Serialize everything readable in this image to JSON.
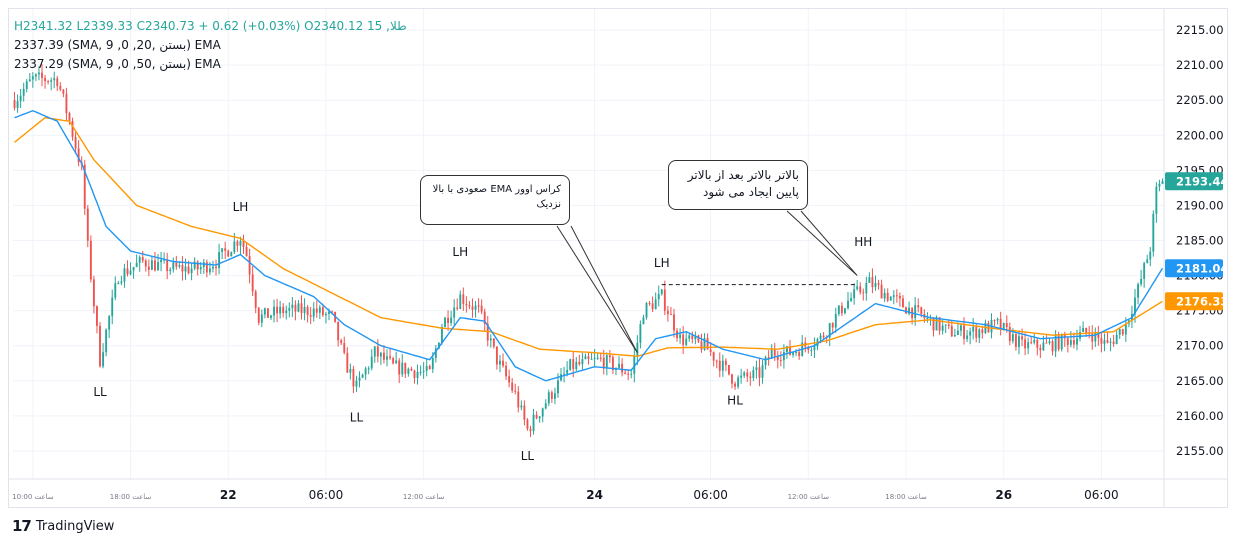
{
  "legend": {
    "ohlc": "H2341.32 L2339.33 C2340.73 + 0.62 (+0.03%) O2340.12 15 ,طلا",
    "ema20": "2337.39 (SMA, 9 ,0 ,بستن ,20) EMA",
    "ema50": "2337.29 (SMA, 9 ,0 ,بستن ,50) EMA"
  },
  "annotations": {
    "callout_1": "کراس اوور EMA صعودی با بالا نزدیک",
    "callout_2": "بالاتر بالاتر بعد از بالاتر پایین ایجاد می شود"
  },
  "footer": {
    "brand": "TradingView",
    "logo": "tradingview-logo-icon"
  },
  "colors": {
    "up": "#26a69a",
    "down": "#ef5350",
    "ema20": "#2196f3",
    "ema50": "#ff9800",
    "grid": "#f0f3fa",
    "axis_text": "#131722"
  },
  "chart_data": {
    "type": "candlestick",
    "ylim": [
      2151,
      2218
    ],
    "price_ticks": [
      "2215.00",
      "2210.00",
      "2205.00",
      "2200.00",
      "2195.00",
      "2190.00",
      "2185.00",
      "2180.00",
      "2175.00",
      "2170.00",
      "2165.00",
      "2160.00",
      "2155.00"
    ],
    "price_labels": [
      {
        "text": "2193.44",
        "value": 2193.44,
        "color": "#26a69a"
      },
      {
        "text": "2181.04",
        "value": 2181.04,
        "color": "#2196f3"
      },
      {
        "text": "2176.33",
        "value": 2176.33,
        "color": "#ff9800"
      }
    ],
    "time_labels": [
      {
        "text": "ساعت 10:00",
        "bar": 6,
        "size": "small"
      },
      {
        "text": "ساعت 18:00",
        "bar": 38,
        "size": "small"
      },
      {
        "text": "22",
        "bar": 70,
        "size": "bold"
      },
      {
        "text": "06:00",
        "bar": 102,
        "size": "normal"
      },
      {
        "text": "ساعت 12:00",
        "bar": 134,
        "size": "small"
      },
      {
        "text": "24",
        "bar": 190,
        "size": "bold"
      },
      {
        "text": "06:00",
        "bar": 228,
        "size": "normal"
      },
      {
        "text": "ساعت 12:00",
        "bar": 260,
        "size": "small"
      },
      {
        "text": "ساعت 18:00",
        "bar": 292,
        "size": "small"
      },
      {
        "text": "26",
        "bar": 324,
        "size": "bold"
      },
      {
        "text": "06:00",
        "bar": 356,
        "size": "normal"
      }
    ],
    "pivot_labels": [
      {
        "text": "LL",
        "bar": 28,
        "value": 2162.8
      },
      {
        "text": "LH",
        "bar": 74,
        "value": 2189.2
      },
      {
        "text": "LL",
        "bar": 112,
        "value": 2159.2
      },
      {
        "text": "LH",
        "bar": 146,
        "value": 2182.8
      },
      {
        "text": "LL",
        "bar": 168,
        "value": 2153.7
      },
      {
        "text": "LH",
        "bar": 212,
        "value": 2181.2
      },
      {
        "text": "HL",
        "bar": 236,
        "value": 2161.6
      },
      {
        "text": "HH",
        "bar": 278,
        "value": 2184.2
      }
    ],
    "key_points": [
      {
        "bar": 0,
        "value": 2205
      },
      {
        "bar": 6,
        "value": 2208
      },
      {
        "bar": 14,
        "value": 2208
      },
      {
        "bar": 18,
        "value": 2202
      },
      {
        "bar": 22,
        "value": 2195
      },
      {
        "bar": 24,
        "value": 2184
      },
      {
        "bar": 28,
        "value": 2168
      },
      {
        "bar": 34,
        "value": 2180
      },
      {
        "bar": 42,
        "value": 2182
      },
      {
        "bar": 52,
        "value": 2181
      },
      {
        "bar": 60,
        "value": 2181
      },
      {
        "bar": 66,
        "value": 2182
      },
      {
        "bar": 74,
        "value": 2185.5
      },
      {
        "bar": 76,
        "value": 2183
      },
      {
        "bar": 80,
        "value": 2174
      },
      {
        "bar": 88,
        "value": 2175
      },
      {
        "bar": 98,
        "value": 2175
      },
      {
        "bar": 104,
        "value": 2174
      },
      {
        "bar": 108,
        "value": 2168
      },
      {
        "bar": 112,
        "value": 2164
      },
      {
        "bar": 118,
        "value": 2169
      },
      {
        "bar": 124,
        "value": 2167
      },
      {
        "bar": 136,
        "value": 2166
      },
      {
        "bar": 140,
        "value": 2173
      },
      {
        "bar": 146,
        "value": 2177
      },
      {
        "bar": 152,
        "value": 2175
      },
      {
        "bar": 158,
        "value": 2168
      },
      {
        "bar": 164,
        "value": 2163
      },
      {
        "bar": 168,
        "value": 2158
      },
      {
        "bar": 174,
        "value": 2162
      },
      {
        "bar": 182,
        "value": 2167
      },
      {
        "bar": 192,
        "value": 2168
      },
      {
        "bar": 202,
        "value": 2166
      },
      {
        "bar": 206,
        "value": 2175
      },
      {
        "bar": 212,
        "value": 2177
      },
      {
        "bar": 218,
        "value": 2171
      },
      {
        "bar": 226,
        "value": 2170
      },
      {
        "bar": 232,
        "value": 2167
      },
      {
        "bar": 236,
        "value": 2165
      },
      {
        "bar": 244,
        "value": 2166
      },
      {
        "bar": 248,
        "value": 2169
      },
      {
        "bar": 254,
        "value": 2169
      },
      {
        "bar": 264,
        "value": 2171
      },
      {
        "bar": 272,
        "value": 2176
      },
      {
        "bar": 280,
        "value": 2179
      },
      {
        "bar": 290,
        "value": 2176
      },
      {
        "bar": 298,
        "value": 2174
      },
      {
        "bar": 306,
        "value": 2172
      },
      {
        "bar": 314,
        "value": 2172
      },
      {
        "bar": 322,
        "value": 2173
      },
      {
        "bar": 330,
        "value": 2170
      },
      {
        "bar": 338,
        "value": 2170
      },
      {
        "bar": 346,
        "value": 2171
      },
      {
        "bar": 352,
        "value": 2172
      },
      {
        "bar": 358,
        "value": 2170
      },
      {
        "bar": 364,
        "value": 2173
      },
      {
        "bar": 368,
        "value": 2178
      },
      {
        "bar": 372,
        "value": 2184
      },
      {
        "bar": 374,
        "value": 2192
      },
      {
        "bar": 376,
        "value": 2193.44
      }
    ],
    "ema20_points": [
      {
        "bar": 0,
        "value": 2202.5
      },
      {
        "bar": 6,
        "value": 2203.5
      },
      {
        "bar": 14,
        "value": 2202
      },
      {
        "bar": 22,
        "value": 2196
      },
      {
        "bar": 30,
        "value": 2187
      },
      {
        "bar": 38,
        "value": 2183.5
      },
      {
        "bar": 52,
        "value": 2182
      },
      {
        "bar": 66,
        "value": 2181.5
      },
      {
        "bar": 74,
        "value": 2183
      },
      {
        "bar": 82,
        "value": 2180
      },
      {
        "bar": 98,
        "value": 2177
      },
      {
        "bar": 108,
        "value": 2173
      },
      {
        "bar": 120,
        "value": 2170
      },
      {
        "bar": 136,
        "value": 2168
      },
      {
        "bar": 146,
        "value": 2174
      },
      {
        "bar": 154,
        "value": 2173.5
      },
      {
        "bar": 164,
        "value": 2167
      },
      {
        "bar": 174,
        "value": 2165
      },
      {
        "bar": 190,
        "value": 2167
      },
      {
        "bar": 202,
        "value": 2166.5
      },
      {
        "bar": 210,
        "value": 2171
      },
      {
        "bar": 220,
        "value": 2172
      },
      {
        "bar": 232,
        "value": 2169.5
      },
      {
        "bar": 246,
        "value": 2168
      },
      {
        "bar": 262,
        "value": 2170
      },
      {
        "bar": 272,
        "value": 2173
      },
      {
        "bar": 282,
        "value": 2176
      },
      {
        "bar": 300,
        "value": 2174
      },
      {
        "bar": 318,
        "value": 2173
      },
      {
        "bar": 336,
        "value": 2171
      },
      {
        "bar": 354,
        "value": 2171.5
      },
      {
        "bar": 366,
        "value": 2174
      },
      {
        "bar": 376,
        "value": 2181.04
      }
    ],
    "ema50_points": [
      {
        "bar": 0,
        "value": 2199
      },
      {
        "bar": 10,
        "value": 2202.5
      },
      {
        "bar": 18,
        "value": 2202
      },
      {
        "bar": 26,
        "value": 2196.5
      },
      {
        "bar": 40,
        "value": 2190
      },
      {
        "bar": 58,
        "value": 2187
      },
      {
        "bar": 74,
        "value": 2185.3
      },
      {
        "bar": 88,
        "value": 2181
      },
      {
        "bar": 104,
        "value": 2177.5
      },
      {
        "bar": 120,
        "value": 2174
      },
      {
        "bar": 140,
        "value": 2172.5
      },
      {
        "bar": 156,
        "value": 2172
      },
      {
        "bar": 172,
        "value": 2169.5
      },
      {
        "bar": 190,
        "value": 2169
      },
      {
        "bar": 204,
        "value": 2168.5
      },
      {
        "bar": 214,
        "value": 2169.7
      },
      {
        "bar": 232,
        "value": 2169.8
      },
      {
        "bar": 250,
        "value": 2169.5
      },
      {
        "bar": 266,
        "value": 2170.7
      },
      {
        "bar": 282,
        "value": 2173
      },
      {
        "bar": 300,
        "value": 2173.7
      },
      {
        "bar": 320,
        "value": 2172.5
      },
      {
        "bar": 340,
        "value": 2171.5
      },
      {
        "bar": 360,
        "value": 2172
      },
      {
        "bar": 376,
        "value": 2176.33
      }
    ],
    "hline": {
      "value": 2178.7,
      "from_bar": 212,
      "to_bar": 276
    }
  }
}
